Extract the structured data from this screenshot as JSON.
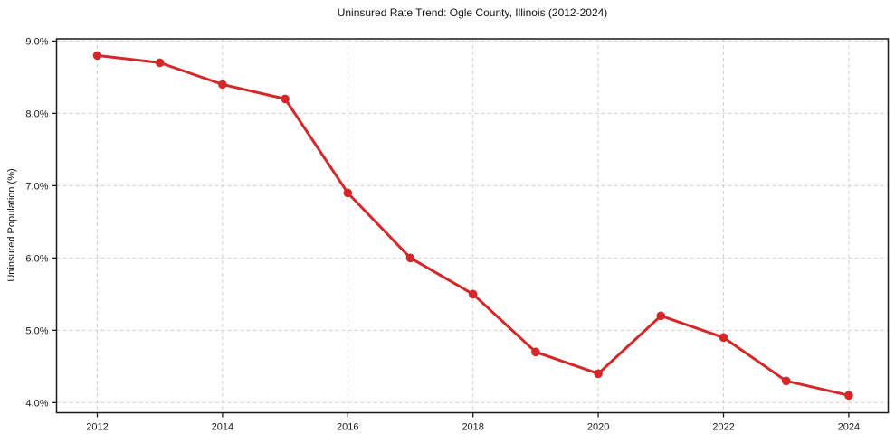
{
  "chart_data": {
    "type": "line",
    "title": "Uninsured Rate Trend: Ogle County, Illinois (2012-2024)",
    "xlabel": "",
    "ylabel": "Uninsured Population (%)",
    "x": [
      2012,
      2013,
      2014,
      2015,
      2016,
      2017,
      2018,
      2019,
      2020,
      2021,
      2022,
      2023,
      2024
    ],
    "values": [
      8.8,
      8.7,
      8.4,
      8.2,
      6.9,
      6.0,
      5.5,
      4.7,
      4.4,
      5.2,
      4.9,
      4.3,
      4.1
    ],
    "xlim": [
      2011.35,
      2024.63
    ],
    "ylim": [
      3.86,
      9.03
    ],
    "xticks": {
      "values": [
        2012,
        2014,
        2016,
        2018,
        2020,
        2022,
        2024
      ],
      "labels": [
        "2012",
        "2014",
        "2016",
        "2018",
        "2020",
        "2022",
        "2024"
      ]
    },
    "yticks": {
      "values": [
        4.0,
        5.0,
        6.0,
        7.0,
        8.0,
        9.0
      ],
      "labels": [
        "4.0%",
        "5.0%",
        "6.0%",
        "7.0%",
        "8.0%",
        "9.0%"
      ]
    },
    "grid": true,
    "grid_style": "dashed",
    "legend": false,
    "marker": "circle",
    "colors": {
      "line": "#d62728",
      "marker": "#d62728",
      "grid": "#d0d0d0",
      "axis": "#1a1a1a",
      "tick_text": "#191919",
      "background": "#ffffff"
    }
  }
}
